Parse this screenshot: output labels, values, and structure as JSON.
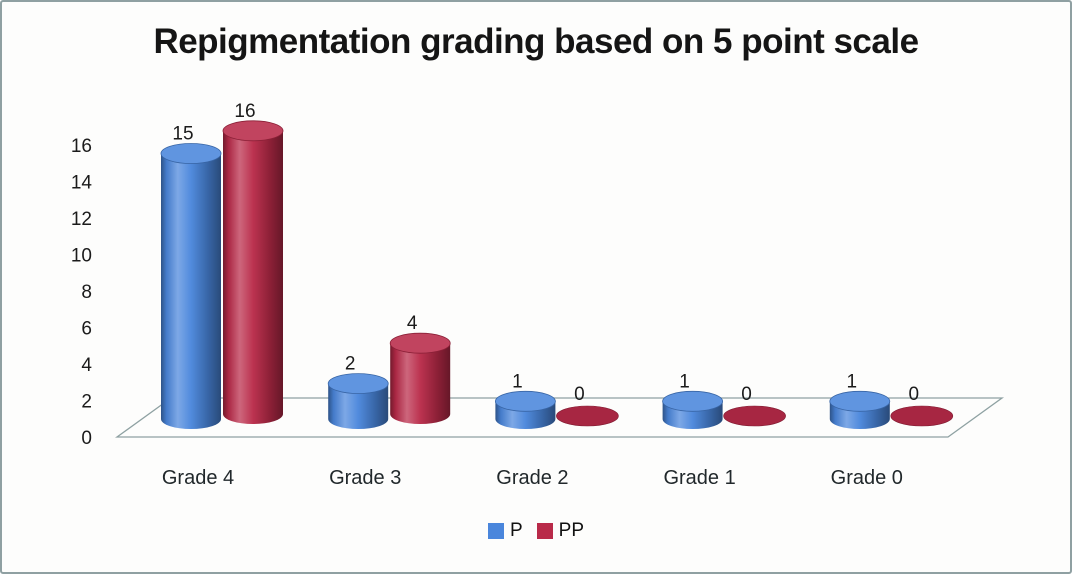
{
  "chart_data": {
    "type": "bar",
    "style": "3d-cylinder",
    "title": "Repigmentation grading based on 5 point scale",
    "categories": [
      "Grade 4",
      "Grade 3",
      "Grade 2",
      "Grade 1",
      "Grade 0"
    ],
    "series": [
      {
        "name": "P",
        "color": "#4a86dc",
        "values": [
          15,
          2,
          1,
          1,
          1
        ]
      },
      {
        "name": "PP",
        "color": "#b92a49",
        "values": [
          16,
          4,
          0,
          0,
          0
        ]
      }
    ],
    "yticks": [
      0,
      2,
      4,
      6,
      8,
      10,
      12,
      14,
      16
    ],
    "ylim": [
      0,
      16
    ],
    "grid": false,
    "data_labels": true,
    "legend_position": "bottom"
  },
  "colors": {
    "frame_border": "#8fa0a2",
    "floor_stroke": "#8ea1a2",
    "text": "#1b1b1b",
    "background": "#fdfdfc"
  }
}
